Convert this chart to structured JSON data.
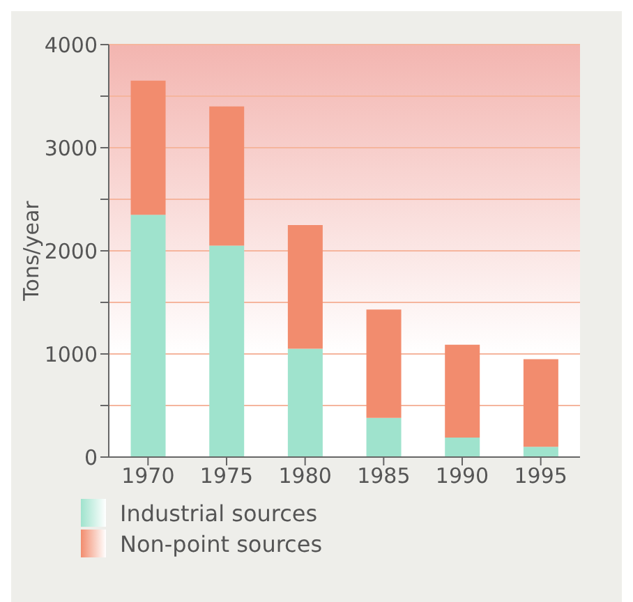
{
  "chart_data": {
    "type": "bar",
    "ylabel": "Tons/year",
    "categories": [
      "1970",
      "1975",
      "1980",
      "1985",
      "1990",
      "1995"
    ],
    "stacked": true,
    "series": [
      {
        "name": "Industrial sources",
        "color": "#9fe3cd",
        "values": [
          2350,
          2050,
          1050,
          380,
          190,
          100
        ]
      },
      {
        "name": "Non-point sources",
        "color": "#f28c6e",
        "values": [
          1300,
          1350,
          1200,
          1050,
          900,
          850
        ]
      }
    ],
    "ylim": [
      0,
      4000
    ],
    "yticks": [
      0,
      {
        "value": 500,
        "label": null
      },
      1000,
      {
        "value": 1500,
        "label": null
      },
      2000,
      {
        "value": 2500,
        "label": null
      },
      3000,
      {
        "value": 3500,
        "label": null
      },
      4000
    ],
    "grid": "y",
    "legend": "bottom left"
  }
}
